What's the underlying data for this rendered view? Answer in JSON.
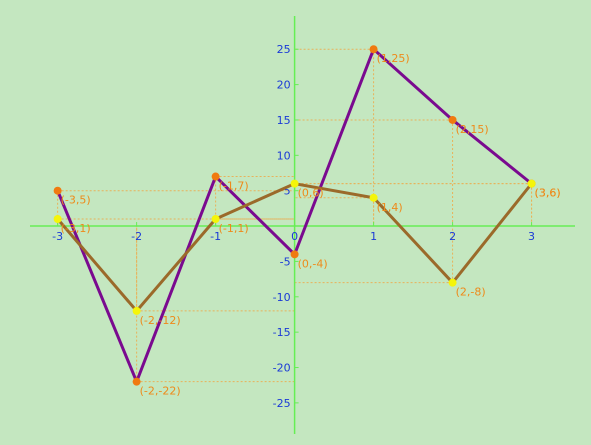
{
  "chart_data": {
    "type": "line",
    "x": [
      -3,
      -2,
      -1,
      0,
      1,
      2,
      3
    ],
    "xlim": [
      -3.35,
      3.55
    ],
    "ylim": [
      -29.4,
      29.7
    ],
    "x_ticks": [
      -3,
      -2,
      -1,
      0,
      1,
      2,
      3
    ],
    "y_ticks": [
      25,
      20,
      15,
      10,
      5,
      -5,
      -10,
      -15,
      -20,
      -25
    ],
    "grid": false,
    "series": [
      {
        "values": [
          5,
          -22,
          7,
          -4,
          25,
          15,
          6
        ],
        "color": "#7a0a8f",
        "marker_color": "#f07a10",
        "labels": [
          "(-3,5)",
          "(-2,-22)",
          "(-1,7)",
          "(0,-4)",
          "(1,25)",
          "(2,15)",
          "(3,6)"
        ]
      },
      {
        "values": [
          1,
          -12,
          1,
          6,
          4,
          -8,
          6
        ],
        "color": "#9b6a2a",
        "marker_color": "#f5f50a",
        "labels": [
          "(-3,1)",
          "(-2,-12)",
          "(-1,1)",
          "(0,6)",
          "(1,4)",
          "(2,-8)",
          "(3,6)"
        ]
      }
    ],
    "colors": {
      "background": "#c4e7c0",
      "axis": "#66ee55",
      "tick_label": "#1a3ad6",
      "point_label": "#ee8a1a",
      "guide": "#e8b25a"
    }
  }
}
